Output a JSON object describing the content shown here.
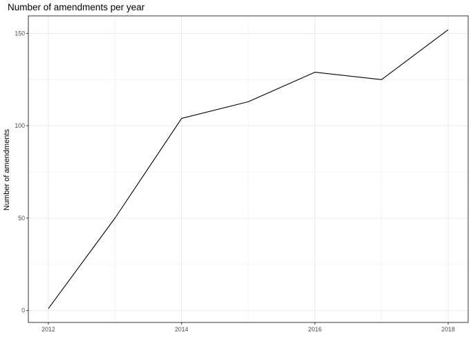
{
  "chart_data": {
    "type": "line",
    "title": "Number of amendments per year",
    "xlabel": "",
    "ylabel": "Number of amendments",
    "x": [
      2012,
      2013,
      2014,
      2015,
      2016,
      2017,
      2018
    ],
    "series": [
      {
        "values": [
          1,
          50,
          104,
          113,
          129,
          125,
          152
        ],
        "color": "#000000"
      }
    ],
    "xlim": [
      2011.7,
      2018.3
    ],
    "ylim": [
      -6.5,
      159.5
    ],
    "xticks": [
      2012,
      2014,
      2016,
      2018
    ],
    "xticks_minor": [
      2013,
      2015,
      2017
    ],
    "yticks": [
      0,
      50,
      100,
      150
    ],
    "yticks_minor": [
      25,
      75,
      125
    ],
    "grid": true,
    "legend": "none",
    "colors": {
      "panel_border": "#333333",
      "grid": "#ebebeb",
      "tick_text": "#4d4d4d"
    }
  }
}
